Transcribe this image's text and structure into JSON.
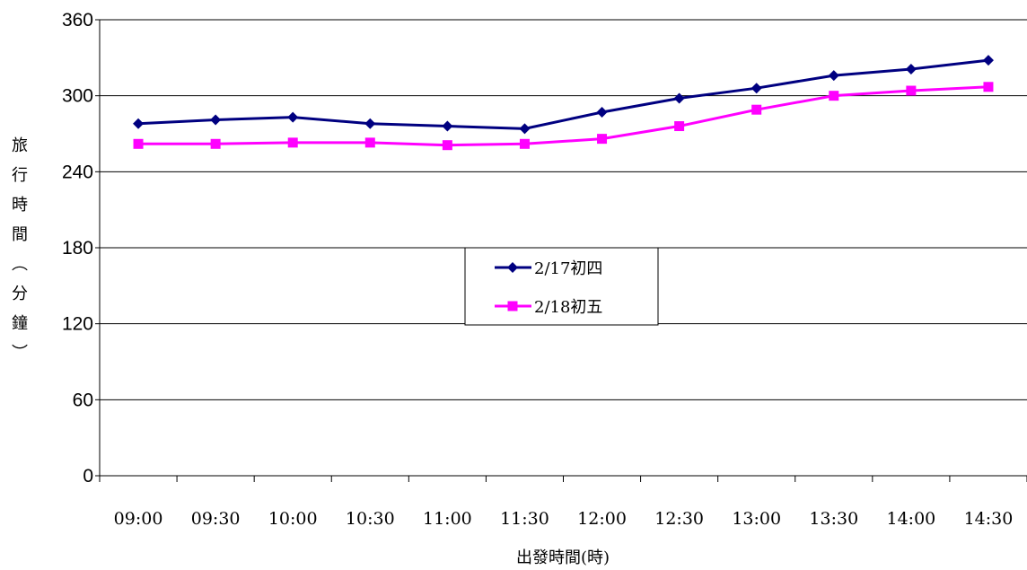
{
  "chart_data": {
    "type": "line",
    "title": "",
    "xlabel": "出發時間(時)",
    "ylabel": "旅行時間(分鐘)",
    "ylabel_chars": [
      "旅",
      "行",
      "時",
      "間",
      "︵",
      "分",
      "鐘",
      "︶"
    ],
    "categories": [
      "09:00",
      "09:30",
      "10:00",
      "10:30",
      "11:00",
      "11:30",
      "12:00",
      "12:30",
      "13:00",
      "13:30",
      "14:00",
      "14:30"
    ],
    "ylim": [
      0,
      360
    ],
    "yticks": [
      "0",
      "60",
      "120",
      "180",
      "240",
      "300",
      "360"
    ],
    "grid": true,
    "legend_position": "center",
    "series": [
      {
        "name": "2/17初四",
        "color": "#000080",
        "marker": "diamond",
        "values": [
          278,
          281,
          283,
          278,
          276,
          274,
          287,
          298,
          306,
          316,
          321,
          328
        ]
      },
      {
        "name": "2/18初五",
        "color": "#FF00FF",
        "marker": "square",
        "values": [
          262,
          262,
          263,
          263,
          261,
          262,
          266,
          276,
          289,
          300,
          304,
          307
        ]
      }
    ]
  }
}
